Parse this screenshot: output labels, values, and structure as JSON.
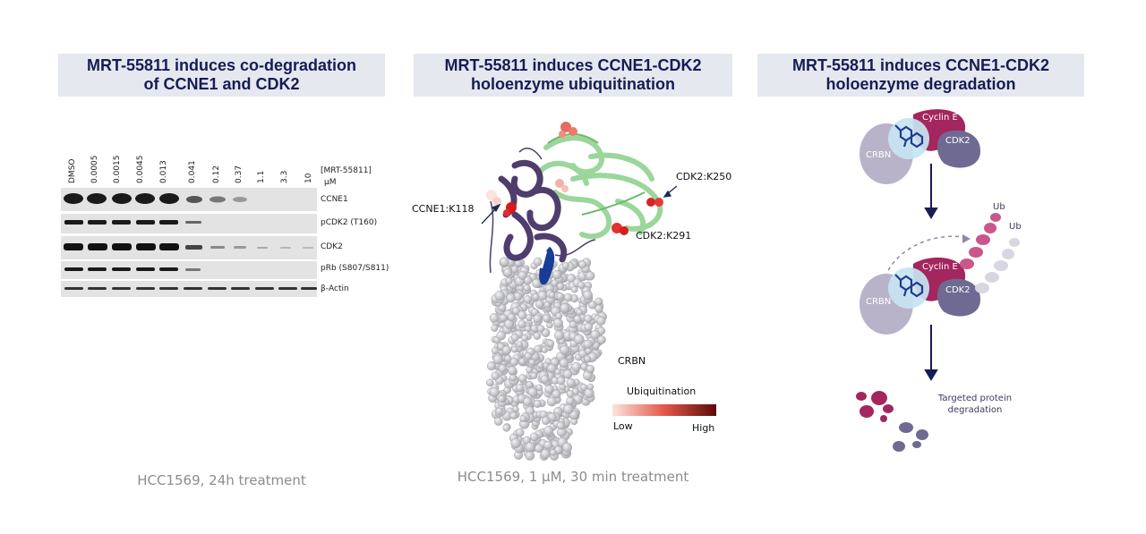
{
  "panel1": {
    "title_line1": "MRT-55811 induces co-degradation",
    "title_line2": "of CCNE1 and CDK2",
    "concentrations": [
      "DMSO",
      "0.0005",
      "0.0015",
      "0.0045",
      "0.013",
      "0.041",
      "0.12",
      "0.37",
      "1.1",
      "3.3",
      "10"
    ],
    "compound_label": "[MRT-55811]",
    "unit_label": "µM",
    "rows": [
      "CCNE1",
      "pCDK2 (T160)",
      "CDK2",
      "pRb (S807/S811)",
      "β-Actin"
    ],
    "caption": "HCC1569, 24h treatment"
  },
  "panel2": {
    "title_line1": "MRT-55811 induces CCNE1-CDK2",
    "title_line2": "holoenzyme ubiquitination",
    "site_labels": [
      "CCNE1:K118",
      "CDK2:K250",
      "CDK2:K291"
    ],
    "crbn_label": "CRBN",
    "legend_title": "Ubiquitination",
    "legend_low": "Low",
    "legend_high": "High",
    "caption": "HCC1569, 1 µM, 30 min treatment"
  },
  "panel3": {
    "title_line1": "MRT-55811 induces CCNE1-CDK2",
    "title_line2": "holoenzyme degradation",
    "crbn": "CRBN",
    "cyclin": "Cyclin E",
    "cdk2": "CDK2",
    "ub": "Ub",
    "outcome_line1": "Targeted protein",
    "outcome_line2": "degradation"
  },
  "colors": {
    "header_bg": "#e6e8ef",
    "header_text": "#141d55",
    "cyclin": "#a3265e",
    "cdk2": "#6e6a92",
    "crbn": "#b8b3c9",
    "ligand_halo": "#c7e4f2",
    "ub_chain": "#c9578a",
    "ccne1_ribbon": "#4e3d6d",
    "cdk2_ribbon": "#96d496",
    "crbn_surface": "#d2d3d6"
  }
}
